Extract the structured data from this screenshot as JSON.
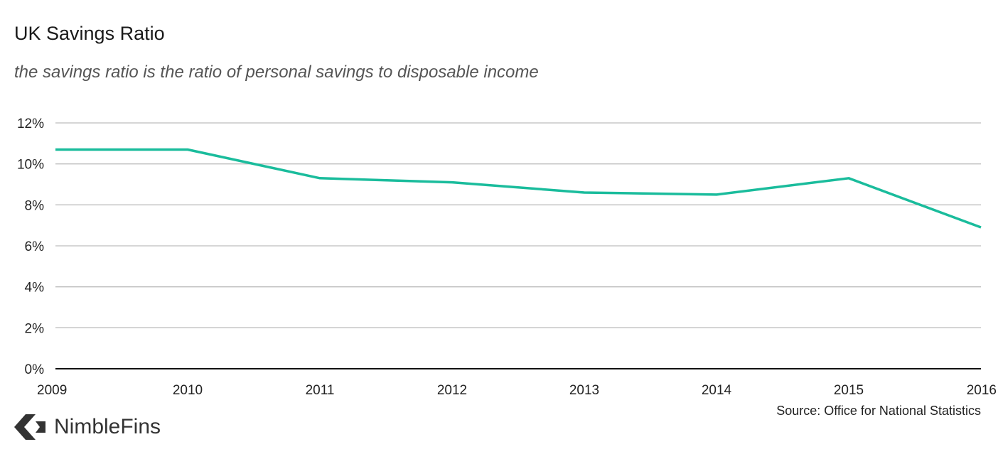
{
  "chart_data": {
    "type": "line",
    "title": "UK Savings Ratio",
    "subtitle": "the savings ratio is the ratio of personal savings to disposable income",
    "x": [
      "2009",
      "2010",
      "2011",
      "2012",
      "2013",
      "2014",
      "2015",
      "2016"
    ],
    "series": [
      {
        "values": [
          10.7,
          10.7,
          9.3,
          9.1,
          8.6,
          8.5,
          9.3,
          6.9
        ],
        "color": "#1abc9c"
      }
    ],
    "y_ticks": [
      "0%",
      "2%",
      "4%",
      "6%",
      "8%",
      "10%",
      "12%"
    ],
    "ylim": [
      0,
      12
    ],
    "grid": true,
    "source": "Source: Office for National Statistics"
  },
  "logo": {
    "text": "NimbleFins",
    "icon": "chevron-left-icon"
  },
  "colors": {
    "line": "#1abc9c",
    "grid": "#bdbdbd",
    "axis": "#111111"
  }
}
